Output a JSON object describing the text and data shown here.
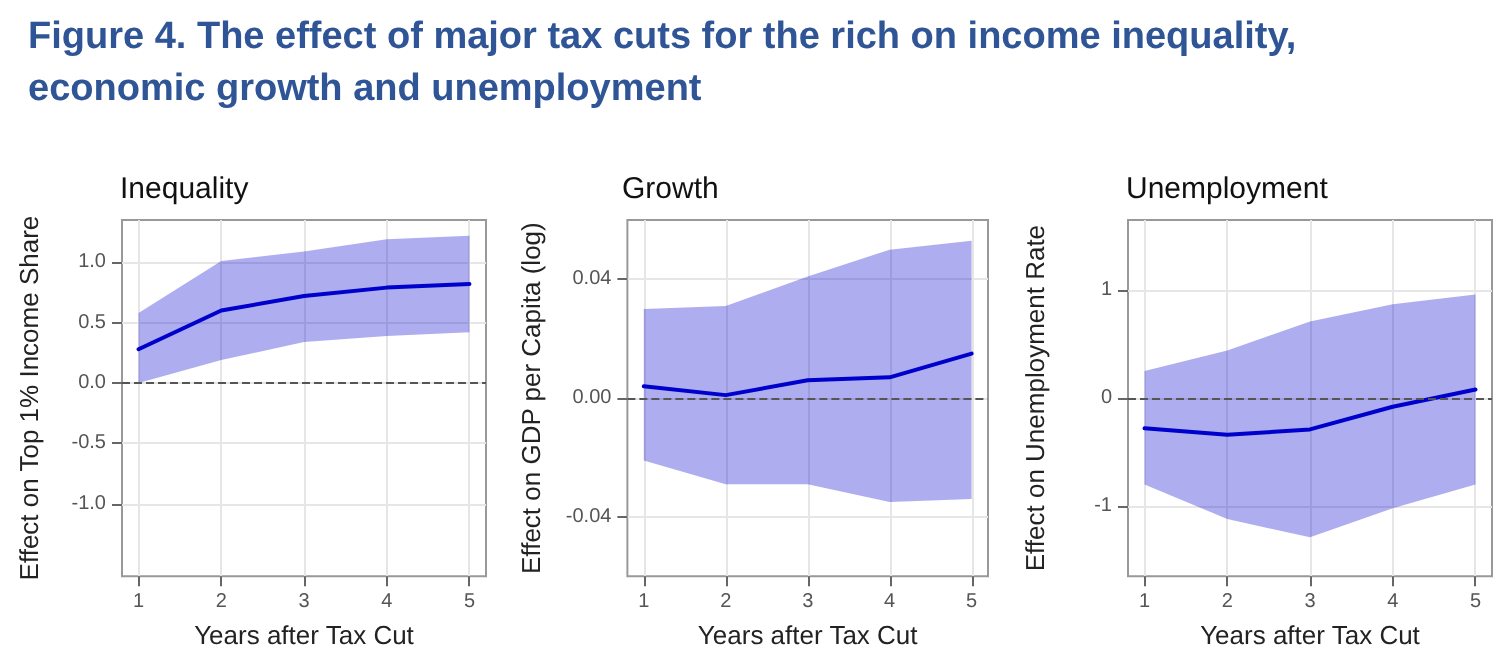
{
  "chart_data": [
    {
      "type": "line",
      "title": "Inequality",
      "xlabel": "Years after Tax Cut",
      "ylabel": "Effect on Top 1% Income Share",
      "annotations": [
        "Figure 4. The effect of major tax cuts for the rich on income inequality, economic growth and unemployment"
      ],
      "x": [
        1,
        2,
        3,
        4,
        5
      ],
      "xlim": [
        0.8,
        5.2
      ],
      "xticks": [
        1,
        2,
        3,
        4,
        5
      ],
      "ylim": [
        -1.6,
        1.35
      ],
      "yticks": [
        {
          "value": -1,
          "label": "-1.0"
        },
        -0.5,
        {
          "value": 0,
          "label": "0.0"
        },
        0.5,
        {
          "value": 1,
          "label": "1.0"
        }
      ],
      "series": [
        {
          "color": "#0000cc",
          "values": [
            0.28,
            0.6,
            0.72,
            0.79,
            0.82
          ],
          "lower": [
            0.0,
            0.19,
            0.34,
            0.39,
            0.42
          ],
          "upper": [
            0.58,
            1.01,
            1.09,
            1.19,
            1.22
          ]
        }
      ],
      "ref_lines": [
        {
          "axis": "y",
          "value": 0,
          "color": "#555555",
          "line_style": "dashed"
        }
      ],
      "grid": true,
      "marker": "none",
      "line_style": "solid"
    },
    {
      "type": "line",
      "title": "Growth",
      "xlabel": "Years after Tax Cut",
      "ylabel": "Effect on GDP per Capita (log)",
      "x": [
        1,
        2,
        3,
        4,
        5
      ],
      "xlim": [
        0.8,
        5.2
      ],
      "xticks": [
        1,
        2,
        3,
        4,
        5
      ],
      "ylim": [
        -0.06,
        0.06
      ],
      "yticks": [
        -0.04,
        {
          "value": 0,
          "label": "0.00"
        },
        0.04
      ],
      "series": [
        {
          "color": "#0000cc",
          "values": [
            0.004,
            0.001,
            0.006,
            0.007,
            0.015
          ],
          "lower": [
            -0.021,
            -0.029,
            -0.029,
            -0.035,
            -0.034
          ],
          "upper": [
            0.03,
            0.031,
            0.041,
            0.05,
            0.053
          ]
        }
      ],
      "ref_lines": [
        {
          "axis": "y",
          "value": 0,
          "color": "#555555",
          "line_style": "dashed"
        }
      ],
      "grid": true,
      "marker": "none",
      "line_style": "solid"
    },
    {
      "type": "line",
      "title": "Unemployment",
      "xlabel": "Years after Tax Cut",
      "ylabel": "Effect on Unemployment Rate",
      "x": [
        1,
        2,
        3,
        4,
        5
      ],
      "xlim": [
        0.8,
        5.2
      ],
      "xticks": [
        1,
        2,
        3,
        4,
        5
      ],
      "ylim": [
        -1.65,
        1.65
      ],
      "yticks": [
        -1,
        0,
        1
      ],
      "series": [
        {
          "color": "#0000cc",
          "values": [
            -0.28,
            -0.34,
            -0.29,
            -0.08,
            0.08
          ],
          "lower": [
            -0.8,
            -1.12,
            -1.29,
            -1.02,
            -0.8
          ],
          "upper": [
            0.25,
            0.44,
            0.71,
            0.87,
            0.96
          ]
        }
      ],
      "ref_lines": [
        {
          "axis": "y",
          "value": 0,
          "color": "#555555",
          "line_style": "dashed"
        }
      ],
      "grid": true,
      "marker": "none",
      "line_style": "solid"
    }
  ]
}
